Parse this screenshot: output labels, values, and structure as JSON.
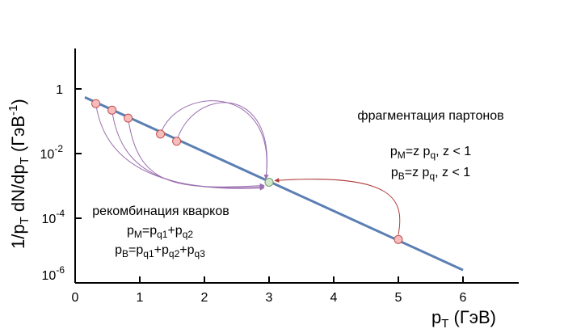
{
  "chart_data": {
    "type": "line",
    "x_axis": {
      "range": [
        0,
        6.85
      ],
      "ticks": [
        0,
        1,
        2,
        3,
        4,
        5,
        6
      ],
      "label": "p_T (ГэВ)"
    },
    "y_axis": {
      "scale": "log",
      "range": [
        1e-06,
        20
      ],
      "label": "1/p_T dN/dp_T (ГэВ^-1)"
    },
    "grid": false,
    "legend": "none",
    "spectrum_line": {
      "x": [
        0.15,
        6.0
      ],
      "y": [
        0.55,
        2.5e-06
      ]
    },
    "points": [
      {
        "x": 0.32,
        "y": 0.35,
        "role": "quark"
      },
      {
        "x": 0.57,
        "y": 0.22,
        "role": "quark"
      },
      {
        "x": 0.82,
        "y": 0.125,
        "role": "quark"
      },
      {
        "x": 1.32,
        "y": 0.04,
        "role": "quark"
      },
      {
        "x": 1.57,
        "y": 0.024,
        "role": "quark"
      },
      {
        "x": 5.0,
        "y": 2.2e-05,
        "role": "parton"
      },
      {
        "x": 3.0,
        "y": 0.0013,
        "role": "hadron"
      }
    ],
    "arrows": {
      "recombination": [
        {
          "from": 0,
          "to": 6
        },
        {
          "from": 1,
          "to": 6
        },
        {
          "from": 2,
          "to": 6
        },
        {
          "from": 3,
          "to": 6
        },
        {
          "from": 4,
          "to": 6
        }
      ],
      "fragmentation": [
        {
          "from": 5,
          "to": 6
        }
      ]
    },
    "annotations": {
      "fragmentation_title": "фрагментация партонов",
      "fragmentation_meson": "pM=z pq, z < 1",
      "fragmentation_baryon": "pB=z pq, z < 1",
      "recombination_title": "рекомбинация кварков",
      "recombination_meson": "pM=pq1+pq2",
      "recombination_baryon": "pB=pq1+pq2+pq3"
    },
    "colors": {
      "line": "#5b7fb3",
      "point_fill": "#f6bdbd",
      "point_stroke": "#c0504d",
      "hadron_fill": "#cfe8c8",
      "hadron_stroke": "#7a9a78",
      "recombination_arrow": "#9b6fb0",
      "fragmentation_arrow": "#b03a3a"
    }
  }
}
